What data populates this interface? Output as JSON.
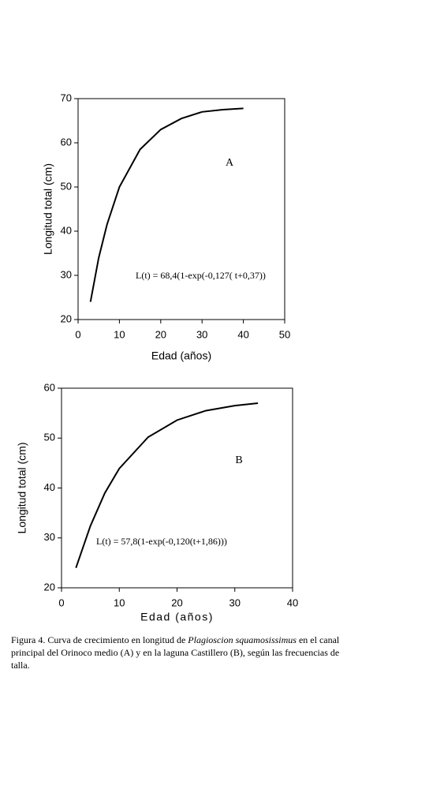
{
  "chart_data": [
    {
      "type": "line",
      "xlabel": "Edad (años)",
      "ylabel": "Longitud total (cm)",
      "xlim": [
        0,
        50
      ],
      "xticks": [
        0,
        10,
        20,
        30,
        40,
        50
      ],
      "ylim": [
        20,
        70
      ],
      "yticks": [
        20,
        30,
        40,
        50,
        60,
        70
      ],
      "annotations": [
        "A",
        "L(t) = 68,4(1-exp(-0,127( t+0,37))"
      ],
      "series": [
        {
          "color": "#000000",
          "x": [
            3,
            5,
            7,
            10,
            15,
            20,
            25,
            30,
            35,
            40
          ],
          "values": [
            24,
            34,
            41.5,
            50,
            58.5,
            63,
            65.5,
            67,
            67.5,
            67.8
          ]
        }
      ]
    },
    {
      "type": "line",
      "xlabel": "Edad (años)",
      "ylabel": "Longitud total (cm)",
      "xlim": [
        0,
        40
      ],
      "xticks": [
        0,
        10,
        20,
        30,
        40
      ],
      "ylim": [
        20,
        60
      ],
      "yticks": [
        20,
        30,
        40,
        50,
        60
      ],
      "annotations": [
        "B",
        "L(t) = 57,8(1-exp(-0,120(t+1,86)))"
      ],
      "series": [
        {
          "color": "#000000",
          "x": [
            2.5,
            5,
            7.5,
            10,
            15,
            20,
            25,
            30,
            34
          ],
          "values": [
            24,
            32.4,
            39,
            43.9,
            50.2,
            53.6,
            55.5,
            56.5,
            57
          ]
        }
      ]
    }
  ],
  "caption": {
    "before": "Figura 4. Curva de crecimiento en longitud de ",
    "species": "Plagioscion squamosissimus",
    "after": " en el canal principal del Orinoco medio (A) y en la laguna Castillero (B), según las frecuencias de talla."
  }
}
